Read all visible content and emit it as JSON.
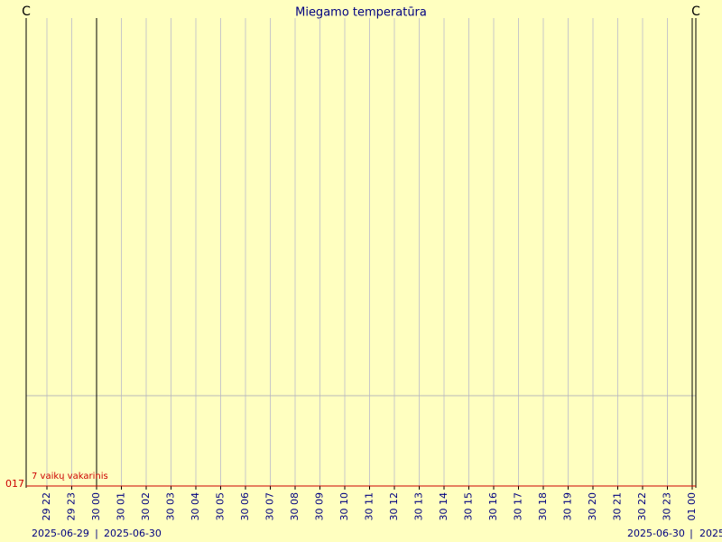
{
  "header": {
    "title": "Miegamo temperatūra"
  },
  "axis": {
    "unit_left": "C",
    "unit_right": "C",
    "y_label": "017"
  },
  "annotation": "7 vaikų vakarinis",
  "x_labels": [
    "29 22",
    "29 23",
    "30 00",
    "30 01",
    "30 02",
    "30 03",
    "30 04",
    "30 05",
    "30 06",
    "30 07",
    "30 08",
    "30 09",
    "30 10",
    "30 11",
    "30 12",
    "30 13",
    "30 14",
    "30 15",
    "30 16",
    "30 17",
    "30 18",
    "30 19",
    "30 20",
    "30 21",
    "30 22",
    "30 23",
    "01 00"
  ],
  "date_labels": [
    "2025-06-29",
    "|",
    "2025-06-30",
    "2025-06-30",
    "|",
    "2025"
  ]
}
